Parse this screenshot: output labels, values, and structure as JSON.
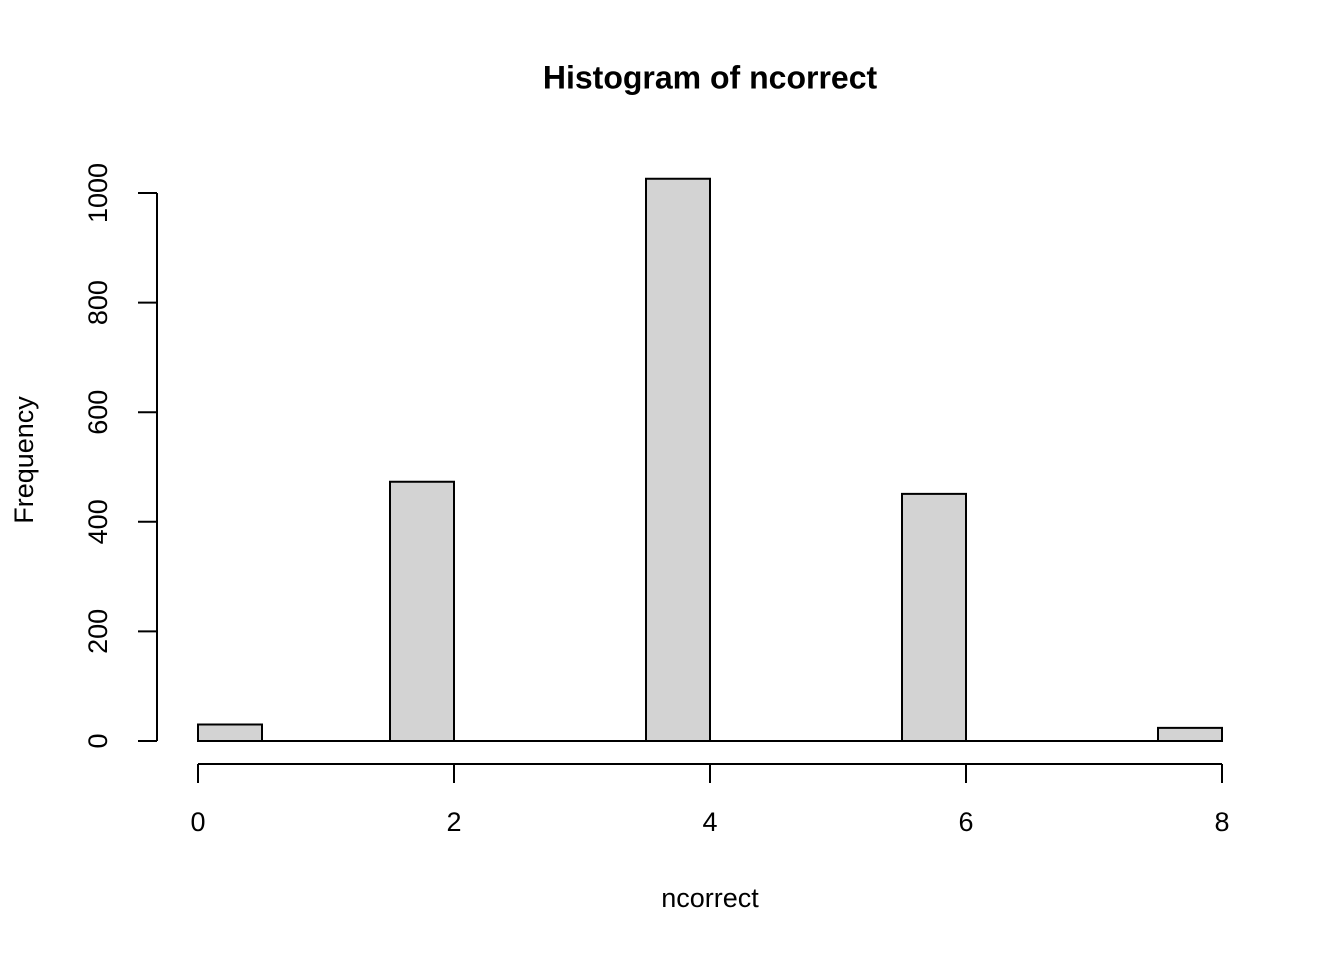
{
  "chart_data": {
    "type": "histogram",
    "title": "Histogram of ncorrect",
    "x_label": "ncorrect",
    "y_label": "Frequency",
    "bins": [
      0,
      0.5,
      1,
      1.5,
      2,
      2.5,
      3,
      3.5,
      4,
      4.5,
      5,
      5.5,
      6,
      6.5,
      7,
      7.5,
      8
    ],
    "counts": [
      30,
      0,
      0,
      473,
      0,
      0,
      0,
      1026,
      0,
      0,
      0,
      451,
      0,
      0,
      0,
      24
    ],
    "color": "#d3d3d3",
    "xlim": [
      0,
      8
    ],
    "xticks": [
      0,
      2,
      4,
      6,
      8
    ],
    "ylim": [
      0,
      1000
    ],
    "yticks": [
      0,
      200,
      400,
      600,
      800,
      1000
    ]
  }
}
